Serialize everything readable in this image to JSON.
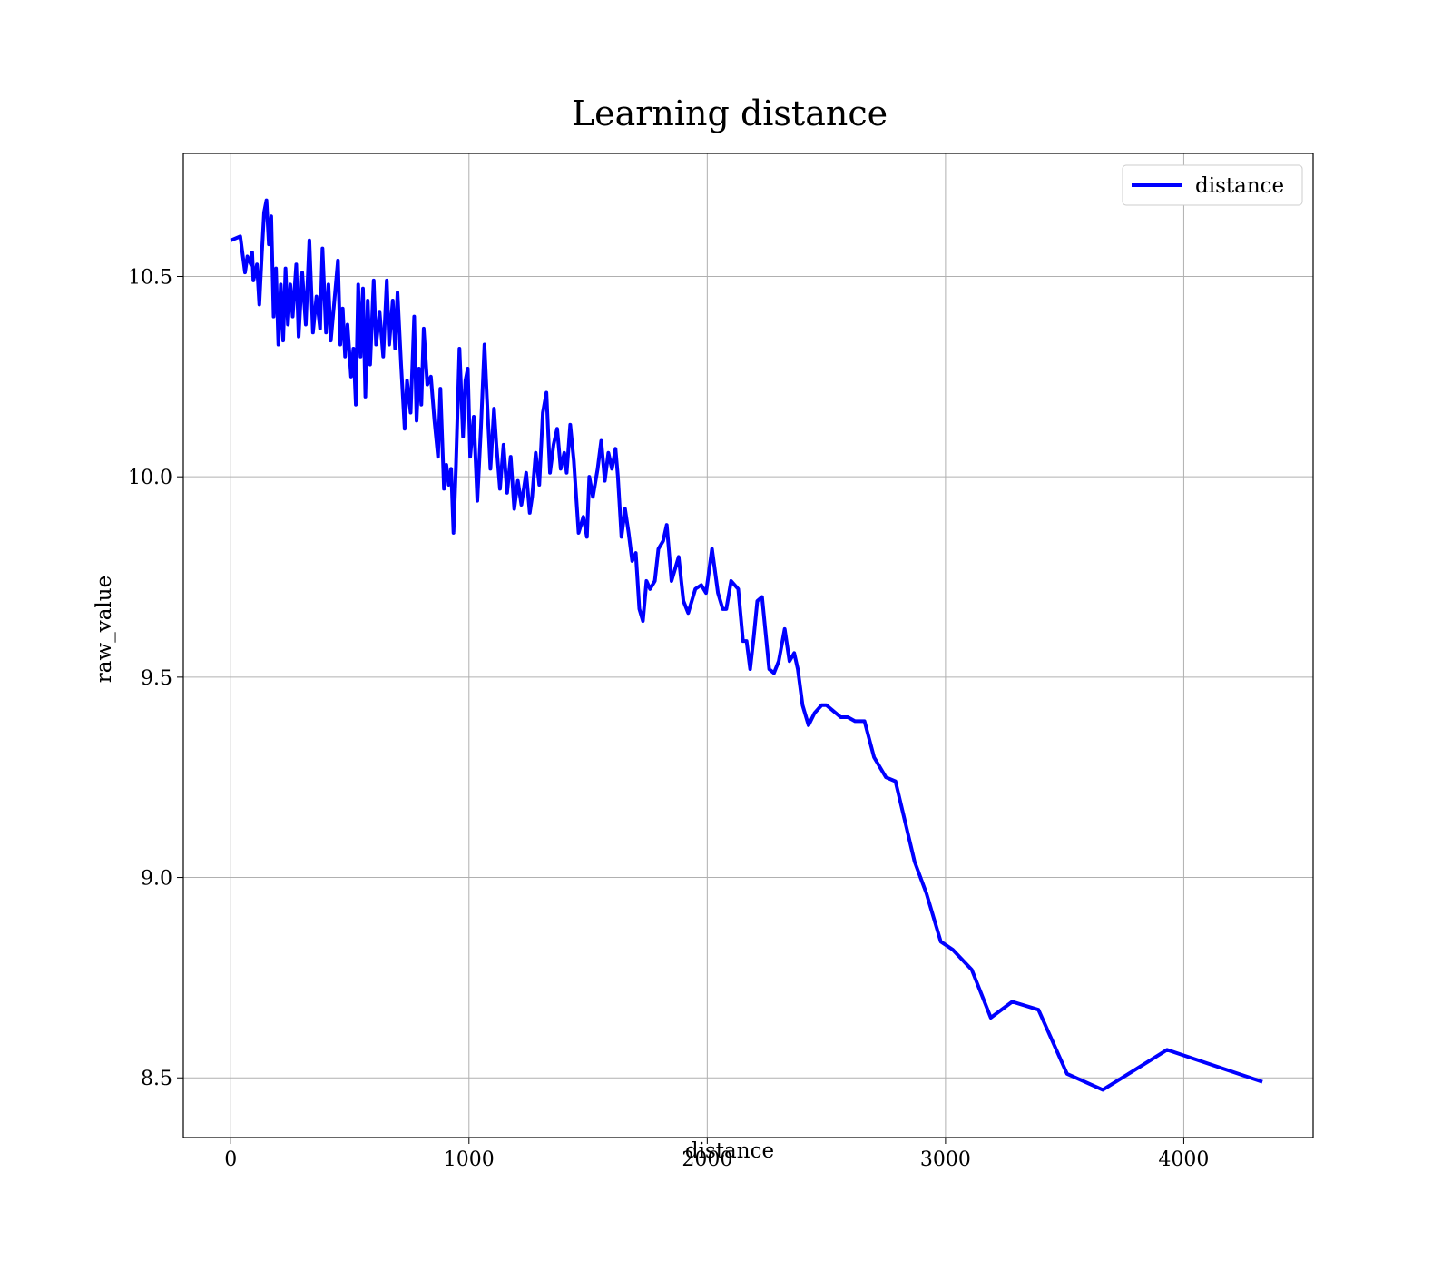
{
  "chart_data": {
    "type": "line",
    "title": "Learning distance",
    "x_label": "distance",
    "y_label": "raw_value",
    "x": [
      0,
      40,
      60,
      70,
      85,
      90,
      95,
      110,
      120,
      130,
      140,
      150,
      160,
      170,
      180,
      190,
      200,
      210,
      220,
      230,
      240,
      250,
      260,
      275,
      285,
      300,
      315,
      330,
      345,
      360,
      375,
      385,
      400,
      410,
      420,
      435,
      450,
      460,
      470,
      480,
      490,
      505,
      515,
      525,
      535,
      545,
      555,
      565,
      575,
      585,
      600,
      610,
      625,
      640,
      655,
      665,
      680,
      690,
      700,
      715,
      730,
      740,
      755,
      770,
      780,
      790,
      800,
      810,
      825,
      840,
      855,
      870,
      880,
      895,
      905,
      915,
      925,
      935,
      945,
      960,
      975,
      985,
      995,
      1005,
      1020,
      1035,
      1050,
      1065,
      1075,
      1090,
      1105,
      1115,
      1130,
      1145,
      1160,
      1175,
      1190,
      1205,
      1220,
      1240,
      1255,
      1265,
      1280,
      1295,
      1310,
      1325,
      1340,
      1355,
      1370,
      1385,
      1400,
      1410,
      1425,
      1440,
      1460,
      1480,
      1495,
      1505,
      1520,
      1540,
      1555,
      1570,
      1585,
      1600,
      1615,
      1625,
      1640,
      1655,
      1670,
      1685,
      1700,
      1715,
      1730,
      1745,
      1760,
      1780,
      1795,
      1815,
      1830,
      1850,
      1880,
      1900,
      1920,
      1950,
      1975,
      1995,
      2020,
      2045,
      2065,
      2080,
      2100,
      2130,
      2150,
      2165,
      2180,
      2195,
      2210,
      2230,
      2260,
      2280,
      2300,
      2325,
      2345,
      2365,
      2380,
      2400,
      2425,
      2450,
      2480,
      2500,
      2560,
      2590,
      2620,
      2660,
      2700,
      2750,
      2790,
      2870,
      2920,
      2980,
      3030,
      3110,
      3190,
      3280,
      3390,
      3510,
      3660,
      3930,
      4330
    ],
    "series": [
      {
        "name": "distance",
        "color": "#0000ff",
        "values": [
          10.59,
          10.6,
          10.51,
          10.55,
          10.53,
          10.56,
          10.49,
          10.53,
          10.43,
          10.55,
          10.66,
          10.69,
          10.58,
          10.65,
          10.4,
          10.52,
          10.33,
          10.48,
          10.34,
          10.52,
          10.38,
          10.48,
          10.4,
          10.53,
          10.35,
          10.51,
          10.38,
          10.59,
          10.36,
          10.45,
          10.37,
          10.57,
          10.36,
          10.48,
          10.34,
          10.44,
          10.54,
          10.33,
          10.42,
          10.3,
          10.38,
          10.25,
          10.32,
          10.18,
          10.48,
          10.3,
          10.47,
          10.2,
          10.44,
          10.28,
          10.49,
          10.33,
          10.41,
          10.3,
          10.49,
          10.33,
          10.44,
          10.32,
          10.46,
          10.28,
          10.12,
          10.24,
          10.16,
          10.4,
          10.14,
          10.27,
          10.18,
          10.37,
          10.23,
          10.25,
          10.14,
          10.05,
          10.22,
          9.97,
          10.03,
          9.98,
          10.02,
          9.86,
          10.02,
          10.32,
          10.1,
          10.24,
          10.27,
          10.05,
          10.15,
          9.94,
          10.12,
          10.33,
          10.2,
          10.02,
          10.17,
          10.08,
          9.97,
          10.08,
          9.96,
          10.05,
          9.92,
          9.99,
          9.93,
          10.01,
          9.91,
          9.95,
          10.06,
          9.98,
          10.16,
          10.21,
          10.01,
          10.08,
          10.12,
          10.02,
          10.06,
          10.01,
          10.13,
          10.04,
          9.86,
          9.9,
          9.85,
          10.0,
          9.95,
          10.02,
          10.09,
          9.99,
          10.06,
          10.02,
          10.07,
          10.0,
          9.85,
          9.92,
          9.86,
          9.79,
          9.81,
          9.67,
          9.64,
          9.74,
          9.72,
          9.74,
          9.82,
          9.84,
          9.88,
          9.74,
          9.8,
          9.69,
          9.66,
          9.72,
          9.73,
          9.71,
          9.82,
          9.71,
          9.67,
          9.67,
          9.74,
          9.72,
          9.59,
          9.59,
          9.52,
          9.6,
          9.69,
          9.7,
          9.52,
          9.51,
          9.54,
          9.62,
          9.54,
          9.56,
          9.52,
          9.43,
          9.38,
          9.41,
          9.43,
          9.43,
          9.4,
          9.4,
          9.39,
          9.39,
          9.3,
          9.25,
          9.24,
          9.04,
          8.96,
          8.84,
          8.82,
          8.77,
          8.65,
          8.69,
          8.67,
          8.51,
          8.47,
          8.57,
          8.49
        ]
      }
    ],
    "xlim": [
      -199,
      4543
    ],
    "ylim": [
      8.351,
      10.807
    ],
    "xticks": [
      0,
      1000,
      2000,
      3000,
      4000
    ],
    "yticks": [
      8.5,
      {
        "value": 9,
        "label": "9.0"
      },
      9.5,
      {
        "value": 10,
        "label": "10.0"
      },
      10.5
    ],
    "grid": true,
    "legend": "upper right"
  }
}
